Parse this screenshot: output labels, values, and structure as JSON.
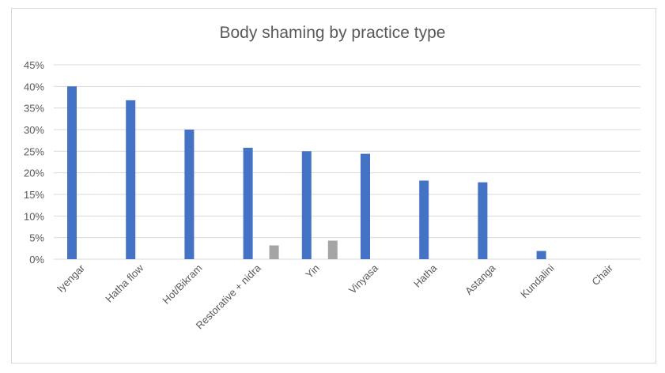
{
  "chart_data": {
    "type": "bar",
    "title": "Body shaming by practice type",
    "categories": [
      "Iyengar",
      "Hatha flow",
      "Hot/Bikram",
      "Restorative + nidra",
      "Yin",
      "Vinyasa",
      "Hatha",
      "Astanga",
      "Kundalini",
      "Chair"
    ],
    "series": [
      {
        "values": [
          40,
          36.8,
          30,
          25.8,
          25,
          24.4,
          18.2,
          17.8,
          1.9,
          0
        ],
        "color": "#4472c4"
      },
      {
        "values": [
          0,
          0,
          0,
          3.2,
          4.3,
          0,
          0,
          0,
          0,
          0
        ],
        "color": "#a5a5a5"
      }
    ],
    "yticks": [
      "0%",
      "5%",
      "10%",
      "15%",
      "20%",
      "25%",
      "30%",
      "35%",
      "40%",
      "45%"
    ],
    "ylim": [
      0,
      45
    ],
    "grid": true,
    "legend": "none"
  }
}
